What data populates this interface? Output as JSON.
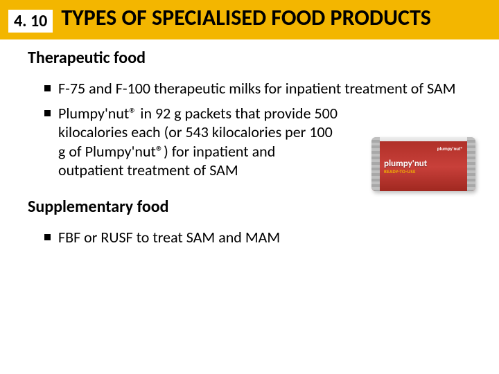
{
  "header": {
    "section_number": "4. 10",
    "title": "TYPES OF SPECIALISED FOOD PRODUCTS"
  },
  "sections": [
    {
      "heading": "Therapeutic food",
      "bullets": [
        "F-75 and F-100 therapeutic milks for inpatient treatment of SAM",
        "Plumpy'nut® in 92 g packets that provide 500 kilocalories each (or 543 kilocalories per 100 g of Plumpy'nut®) for inpatient and outpatient treatment of SAM"
      ]
    },
    {
      "heading": "Supplementary food",
      "bullets": [
        "FBF or RUSF to treat SAM and MAM"
      ]
    }
  ],
  "packet": {
    "brand": "plumpy'nut",
    "mini": "plumpy'nut®",
    "sub": "READY-TO-USE"
  },
  "colors": {
    "header_bg": "#f3b600",
    "packet_red": "#b03028",
    "packet_accent": "#f3b600"
  }
}
